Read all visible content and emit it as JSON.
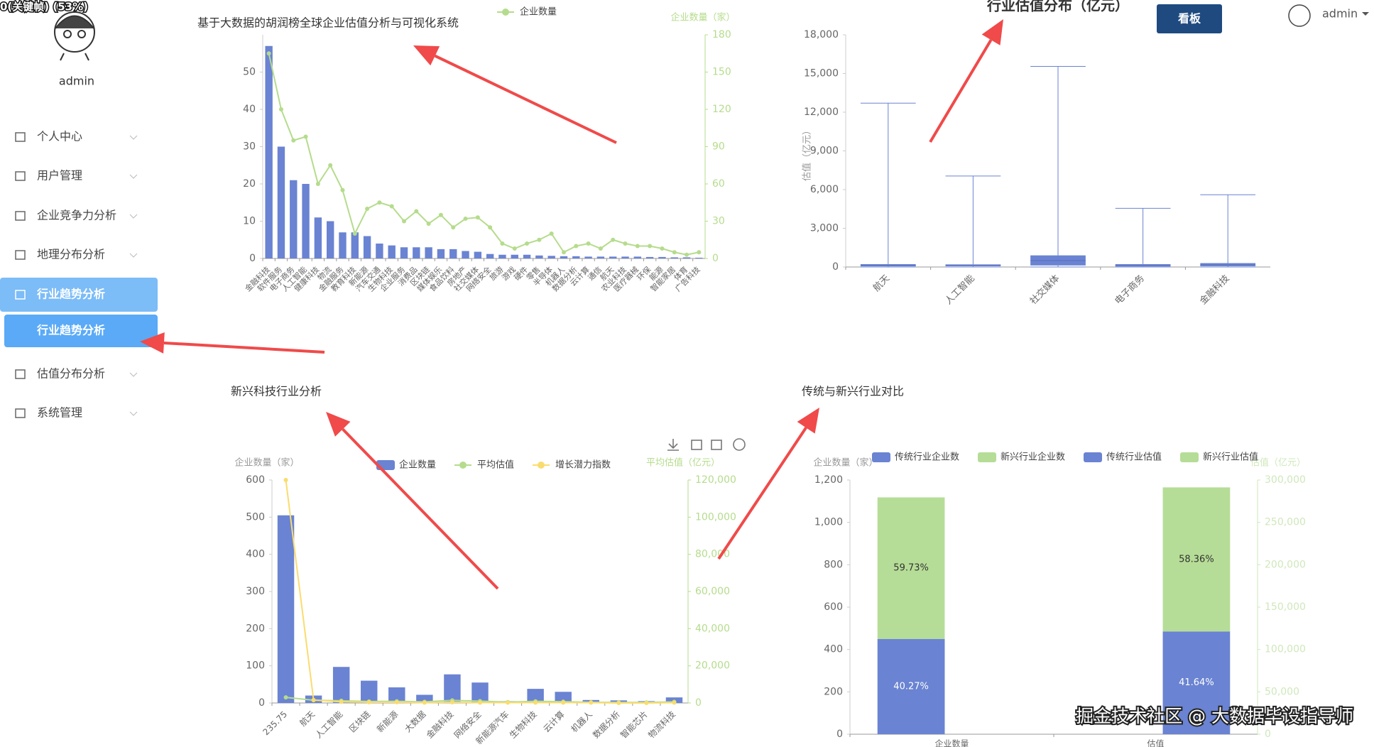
{
  "overlay": "0(关键帧) (53%)",
  "sidebar": {
    "user": "admin",
    "menu": [
      {
        "label": "个人中心"
      },
      {
        "label": "用户管理"
      },
      {
        "label": "企业竞争力分析"
      },
      {
        "label": "地理分布分析"
      },
      {
        "label": "行业趋势分析",
        "active": true
      },
      {
        "label": "行业趋势分析",
        "sub": true,
        "active": true
      },
      {
        "label": "估值分布分析"
      },
      {
        "label": "系统管理"
      }
    ]
  },
  "header": {
    "button": "看板",
    "user": "admin"
  },
  "watermark": "掘金技术社区 @ 大数据毕设指导师",
  "chart_data": [
    {
      "type": "bar",
      "title": "基于大数据的胡润榜全球企业估值分析与可视化系统",
      "categories": [
        "金融科技",
        "软件服务",
        "电子商务",
        "人工智能",
        "健康科技",
        "物流",
        "金融服务",
        "教育科技",
        "新能源",
        "汽车交通",
        "生物科技",
        "企业服务",
        "消费品",
        "区块链",
        "媒体娱乐",
        "食品饮料",
        "房地产",
        "社交媒体",
        "网络安全",
        "旅游",
        "游戏",
        "硬件",
        "零售",
        "半导体",
        "机器人",
        "数据分析",
        "云计算",
        "通信",
        "航天",
        "农业科技",
        "医疗器械",
        "环保",
        "能源",
        "智能家居",
        "体育",
        "广告科技"
      ],
      "ylim": [
        0,
        60
      ],
      "yticks": [
        0,
        10,
        20,
        30,
        40,
        50
      ],
      "y2lim": [
        0,
        180
      ],
      "y2ticks": [
        0,
        30,
        60,
        90,
        120,
        150,
        180
      ],
      "y2label": "企业数量（家）",
      "y2color": "#b5dc8c",
      "series": [
        {
          "type": "bar",
          "color": "#6a83d2",
          "values": [
            57,
            30,
            21,
            20,
            11,
            10,
            7,
            7,
            6,
            4,
            3.5,
            3,
            3,
            3,
            2.5,
            2.5,
            2,
            1.8,
            1.2,
            1,
            1,
            1,
            0.8,
            0.7,
            0.6,
            0.6,
            0.5,
            0.5,
            0.5,
            0.5,
            0.5,
            0.4,
            0.4,
            0.3,
            0.3,
            0.2
          ]
        },
        {
          "name": "企业数量",
          "type": "line",
          "axis": "y2",
          "color": "#b5dc8c",
          "values": [
            165,
            120,
            95,
            98,
            60,
            75,
            55,
            20,
            40,
            45,
            42,
            30,
            38,
            28,
            35,
            25,
            32,
            33,
            25,
            12,
            8,
            12,
            15,
            20,
            5,
            10,
            12,
            8,
            15,
            12,
            10,
            10,
            8,
            5,
            3,
            5
          ]
        }
      ]
    },
    {
      "type": "boxplot",
      "title": "行业估值分布（亿元）",
      "categories": [
        "航天",
        "人工智能",
        "社交媒体",
        "电子商务",
        "金融科技"
      ],
      "ylabel": "估值（亿元）",
      "ylim": [
        0,
        18000
      ],
      "yticks": [
        0,
        {
          "value": 3000,
          "label": "3,000"
        },
        {
          "value": 6000,
          "label": "6,000"
        },
        {
          "value": 9000,
          "label": "9,000"
        },
        {
          "value": 12000,
          "label": "12,000"
        },
        {
          "value": 15000,
          "label": "15,000"
        },
        {
          "value": 18000,
          "label": "18,000"
        }
      ],
      "color": "#6a83d2",
      "min": [
        0,
        0,
        0,
        0,
        0
      ],
      "q1": [
        50,
        60,
        120,
        40,
        60
      ],
      "median": [
        120,
        130,
        500,
        110,
        160
      ],
      "q3": [
        220,
        200,
        900,
        220,
        300
      ],
      "max": [
        12700,
        7050,
        15550,
        4550,
        5600
      ]
    },
    {
      "type": "bar",
      "title": "新兴科技行业分析",
      "categories": [
        "235.75",
        "航天",
        "人工智能",
        "区块链",
        "新能源",
        "大数据",
        "金融科技",
        "网络安全",
        "新能源汽车",
        "生物科技",
        "云计算",
        "机器人",
        "数据分析",
        "智能芯片",
        "物流科技"
      ],
      "ylabel": "企业数量（家）",
      "ylim": [
        0,
        600
      ],
      "yticks": [
        0,
        100,
        200,
        300,
        400,
        500,
        600
      ],
      "y2label": "平均估值（亿元）",
      "y2lim": [
        0,
        120000
      ],
      "y2color": "#b5dc8c",
      "y2ticks": [
        0,
        {
          "value": 20000,
          "label": "20,000"
        },
        {
          "value": 40000,
          "label": "40,000"
        },
        {
          "value": 60000,
          "label": "60,000"
        },
        {
          "value": 80000,
          "label": "80,000"
        },
        {
          "value": 100000,
          "label": "100,000"
        },
        {
          "value": 120000,
          "label": "120,000"
        }
      ],
      "series": [
        {
          "name": "企业数量",
          "type": "bar",
          "color": "#6a83d2",
          "values": [
            505,
            20,
            97,
            60,
            42,
            22,
            77,
            55,
            5,
            38,
            30,
            8,
            7,
            5,
            15
          ]
        },
        {
          "name": "平均估值",
          "type": "line",
          "axis": "y2",
          "color": "#b5dc8c",
          "values": [
            3000,
            1500,
            1200,
            800,
            900,
            600,
            1400,
            1000,
            500,
            900,
            700,
            400,
            300,
            300,
            600
          ]
        },
        {
          "name": "增长潜力指数",
          "type": "line",
          "color": "#fadc6e",
          "values": [
            600,
            8,
            3,
            2,
            2,
            1,
            2,
            1,
            1,
            1,
            1,
            1,
            0,
            0,
            1
          ]
        }
      ]
    },
    {
      "type": "stacked",
      "title": "传统与新兴行业对比",
      "categories": [
        "企业数量",
        "估值"
      ],
      "ylabel": "企业数量（家）",
      "ylim": [
        0,
        1200
      ],
      "yticks": [
        0,
        200,
        400,
        600,
        800,
        {
          "value": 1000,
          "label": "1,000"
        },
        {
          "value": 1200,
          "label": "1,200"
        }
      ],
      "y2label": "估值（亿元）",
      "y2lim": [
        0,
        300000
      ],
      "y2color": "#cfe8bb",
      "y2ticks": [
        0,
        {
          "value": 50000,
          "label": "50,000"
        },
        {
          "value": 100000,
          "label": "100,000"
        },
        {
          "value": 150000,
          "label": "150,000"
        },
        {
          "value": 200000,
          "label": "200,000"
        },
        {
          "value": 250000,
          "label": "250,000"
        },
        {
          "value": 300000,
          "label": "300,000"
        }
      ],
      "series": [
        {
          "name": "传统行业企业数",
          "color": "#6a83d2",
          "values": [
            450,
            null
          ],
          "labels": [
            "40.27%",
            null
          ]
        },
        {
          "name": "新兴行业企业数",
          "color": "#b6dd97",
          "values": [
            668,
            null
          ],
          "labels": [
            "59.73%",
            null
          ]
        },
        {
          "name": "传统行业估值",
          "axis": "y2",
          "color": "#6a83d2",
          "values": [
            null,
            121300
          ],
          "labels": [
            null,
            "41.64%"
          ]
        },
        {
          "name": "新兴行业估值",
          "axis": "y2",
          "color": "#b6dd97",
          "values": [
            null,
            170000
          ],
          "labels": [
            null,
            "58.36%"
          ]
        }
      ]
    }
  ]
}
